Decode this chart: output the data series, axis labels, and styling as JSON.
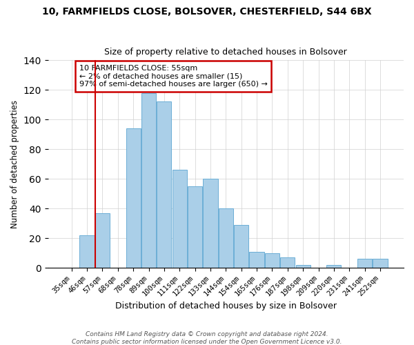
{
  "title": "10, FARMFIELDS CLOSE, BOLSOVER, CHESTERFIELD, S44 6BX",
  "subtitle": "Size of property relative to detached houses in Bolsover",
  "xlabel": "Distribution of detached houses by size in Bolsover",
  "ylabel": "Number of detached properties",
  "bar_labels": [
    "35sqm",
    "46sqm",
    "57sqm",
    "68sqm",
    "78sqm",
    "89sqm",
    "100sqm",
    "111sqm",
    "122sqm",
    "133sqm",
    "144sqm",
    "154sqm",
    "165sqm",
    "176sqm",
    "187sqm",
    "198sqm",
    "209sqm",
    "220sqm",
    "231sqm",
    "241sqm",
    "252sqm"
  ],
  "bar_values": [
    0,
    22,
    37,
    0,
    94,
    118,
    112,
    66,
    55,
    60,
    40,
    29,
    11,
    10,
    7,
    2,
    0,
    2,
    0,
    6,
    6
  ],
  "bar_color": "#aacfe8",
  "vline_x": 2,
  "vline_color": "#cc0000",
  "annotation_text": "10 FARMFIELDS CLOSE: 55sqm\n← 2% of detached houses are smaller (15)\n97% of semi-detached houses are larger (650) →",
  "annotation_box_color": "#ffffff",
  "annotation_box_edge": "#cc0000",
  "ylim": [
    0,
    140
  ],
  "yticks": [
    0,
    20,
    40,
    60,
    80,
    100,
    120,
    140
  ],
  "footer1": "Contains HM Land Registry data © Crown copyright and database right 2024.",
  "footer2": "Contains public sector information licensed under the Open Government Licence v3.0."
}
